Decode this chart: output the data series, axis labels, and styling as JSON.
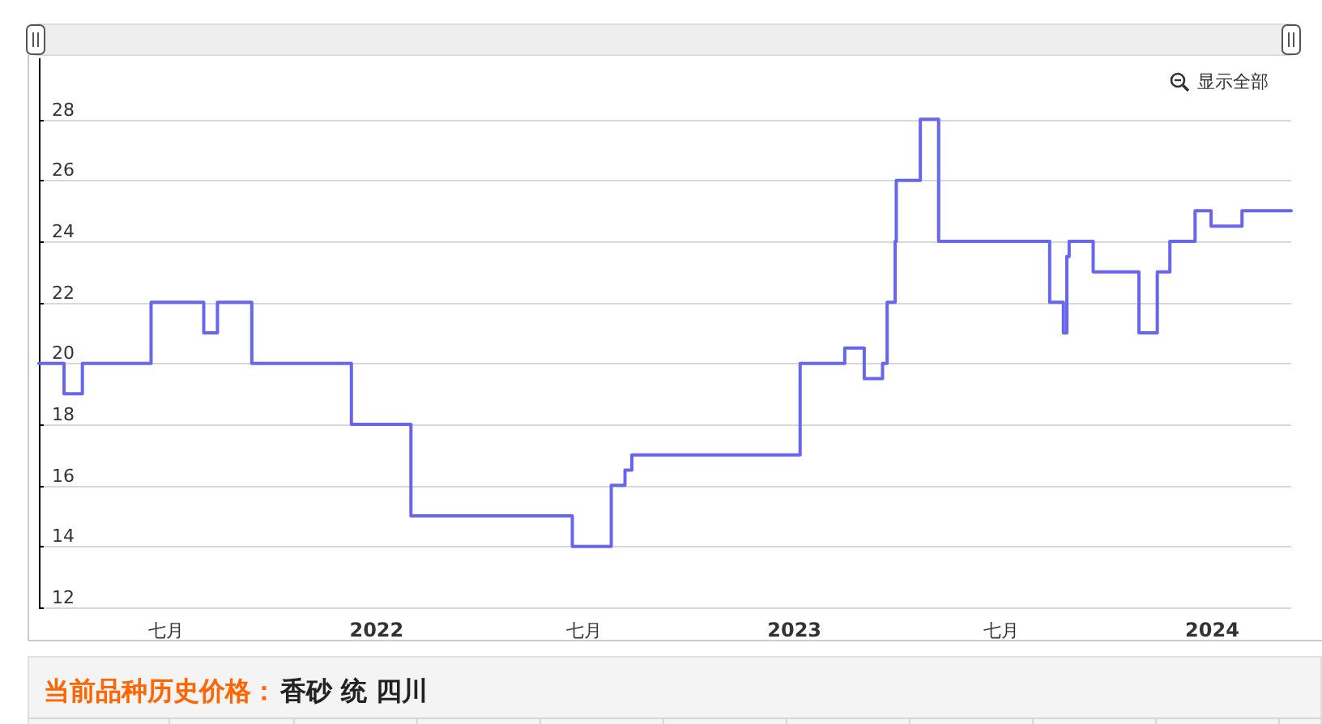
{
  "chart_data": {
    "type": "step",
    "color": "#6666ee",
    "x": [
      "2021-03-12",
      "2021-04-03",
      "2021-04-19",
      "2021-06-18",
      "2021-08-03",
      "2021-08-15",
      "2021-09-14",
      "2021-12-10",
      "2022-01-31",
      "2022-06-21",
      "2022-07-25",
      "2022-08-06",
      "2022-08-12",
      "2023-01-06",
      "2023-02-14",
      "2023-03-03",
      "2023-03-19",
      "2023-03-23",
      "2023-03-30",
      "2023-03-31",
      "2023-04-21",
      "2023-05-07",
      "2023-08-12",
      "2023-08-24",
      "2023-08-27",
      "2023-08-29",
      "2023-09-19",
      "2023-10-29",
      "2023-11-14",
      "2023-11-25",
      "2023-12-17",
      "2023-12-31",
      "2024-01-27",
      "2024-03-10"
    ],
    "values": [
      20,
      19,
      20,
      22,
      21,
      22,
      20,
      18,
      15,
      14,
      16,
      16.5,
      17,
      20,
      20.5,
      19.5,
      20,
      22,
      24,
      26,
      28,
      24,
      22,
      21,
      23.5,
      24,
      23,
      21,
      23,
      24,
      25,
      24.5,
      25,
      25
    ],
    "xlim": [
      "2021-03-12",
      "2024-03-10"
    ],
    "xticks": [
      {
        "value": "2021-07-01",
        "label": "七月"
      },
      {
        "value": "2022-01-01",
        "label": "2022"
      },
      {
        "value": "2022-07-01",
        "label": "七月"
      },
      {
        "value": "2023-01-01",
        "label": "2023"
      },
      {
        "value": "2023-07-01",
        "label": "七月"
      },
      {
        "value": "2024-01-01",
        "label": "2024"
      }
    ],
    "ylim": [
      12,
      30
    ],
    "yticks": [
      12,
      14,
      16,
      18,
      20,
      22,
      24,
      26,
      28
    ],
    "grid": "y",
    "annotations": [
      "显示全部",
      "当前品种历史价格：",
      "香砂 统 四川"
    ]
  }
}
